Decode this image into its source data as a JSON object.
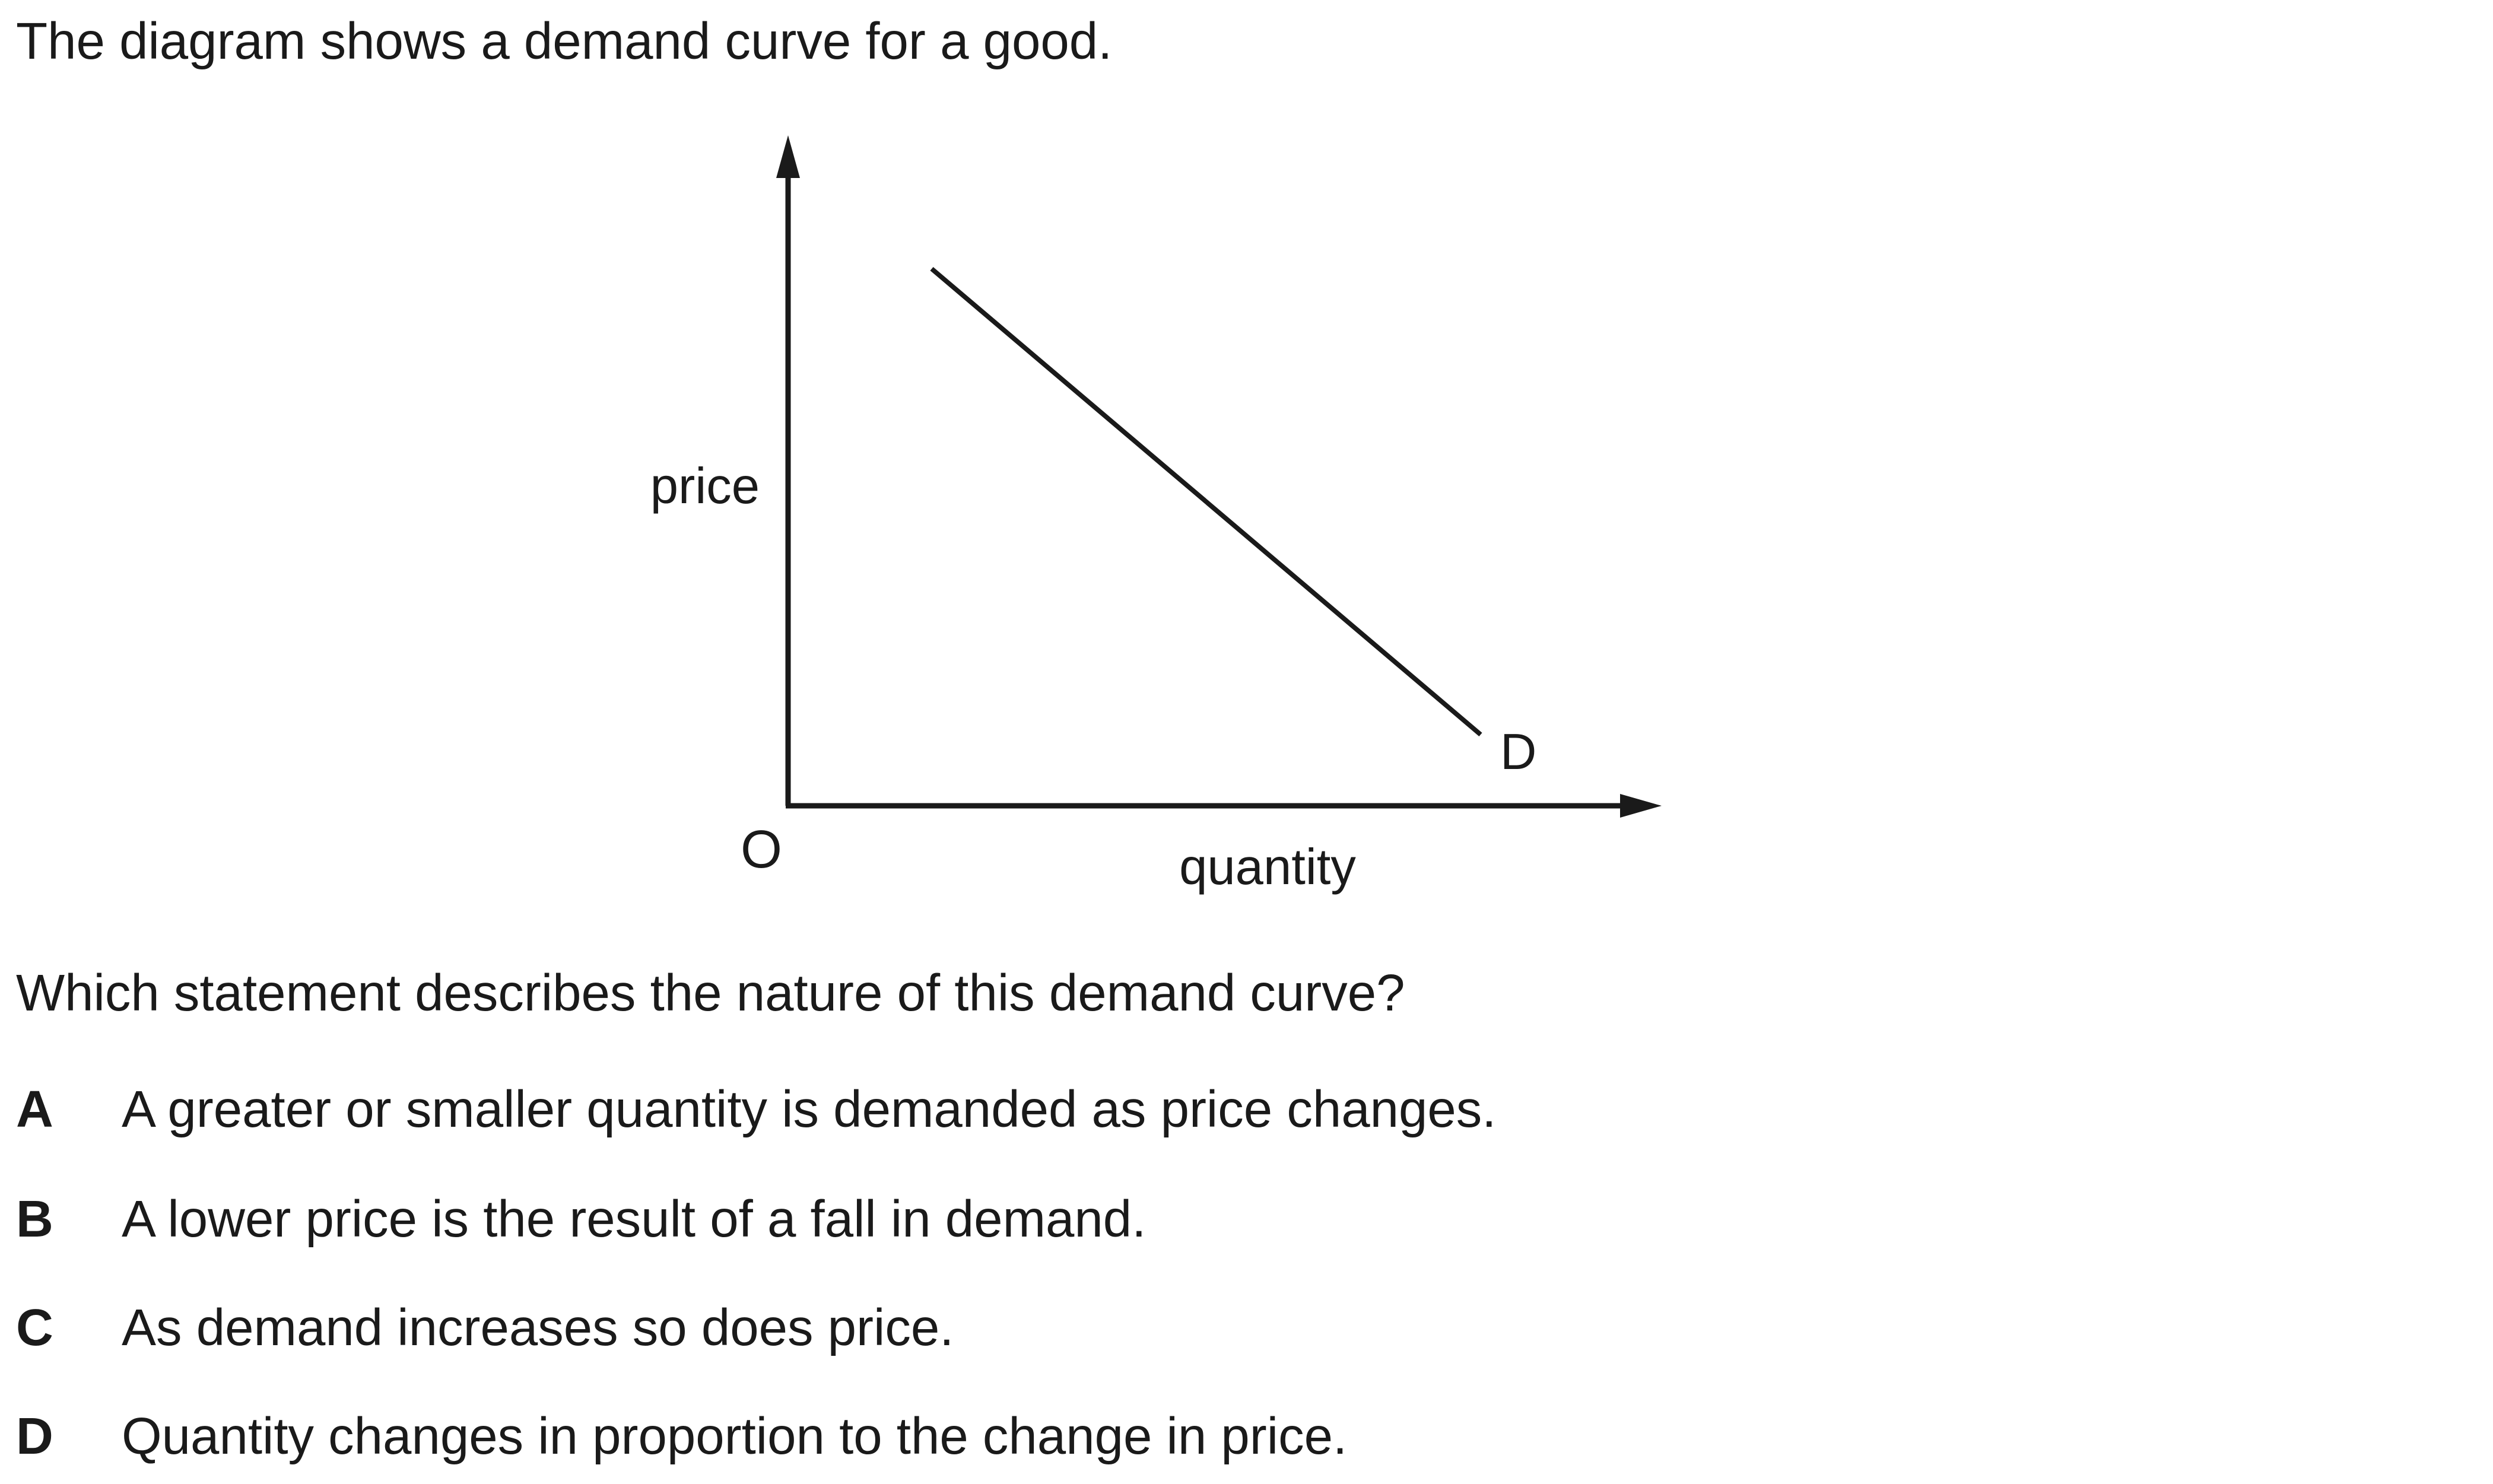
{
  "intro": "The diagram shows a demand curve for a good.",
  "diagram": {
    "y_axis_label": "price",
    "x_axis_label": "quantity",
    "origin_label": "O",
    "curve_label": "D"
  },
  "question": "Which statement describes the nature of this demand curve?",
  "options": [
    {
      "letter": "A",
      "text": "A greater or smaller quantity is demanded as price changes."
    },
    {
      "letter": "B",
      "text": "A lower price is the result of a fall in demand."
    },
    {
      "letter": "C",
      "text": "As demand increases so does price."
    },
    {
      "letter": "D",
      "text": "Quantity changes in proportion to the change in price."
    }
  ]
}
